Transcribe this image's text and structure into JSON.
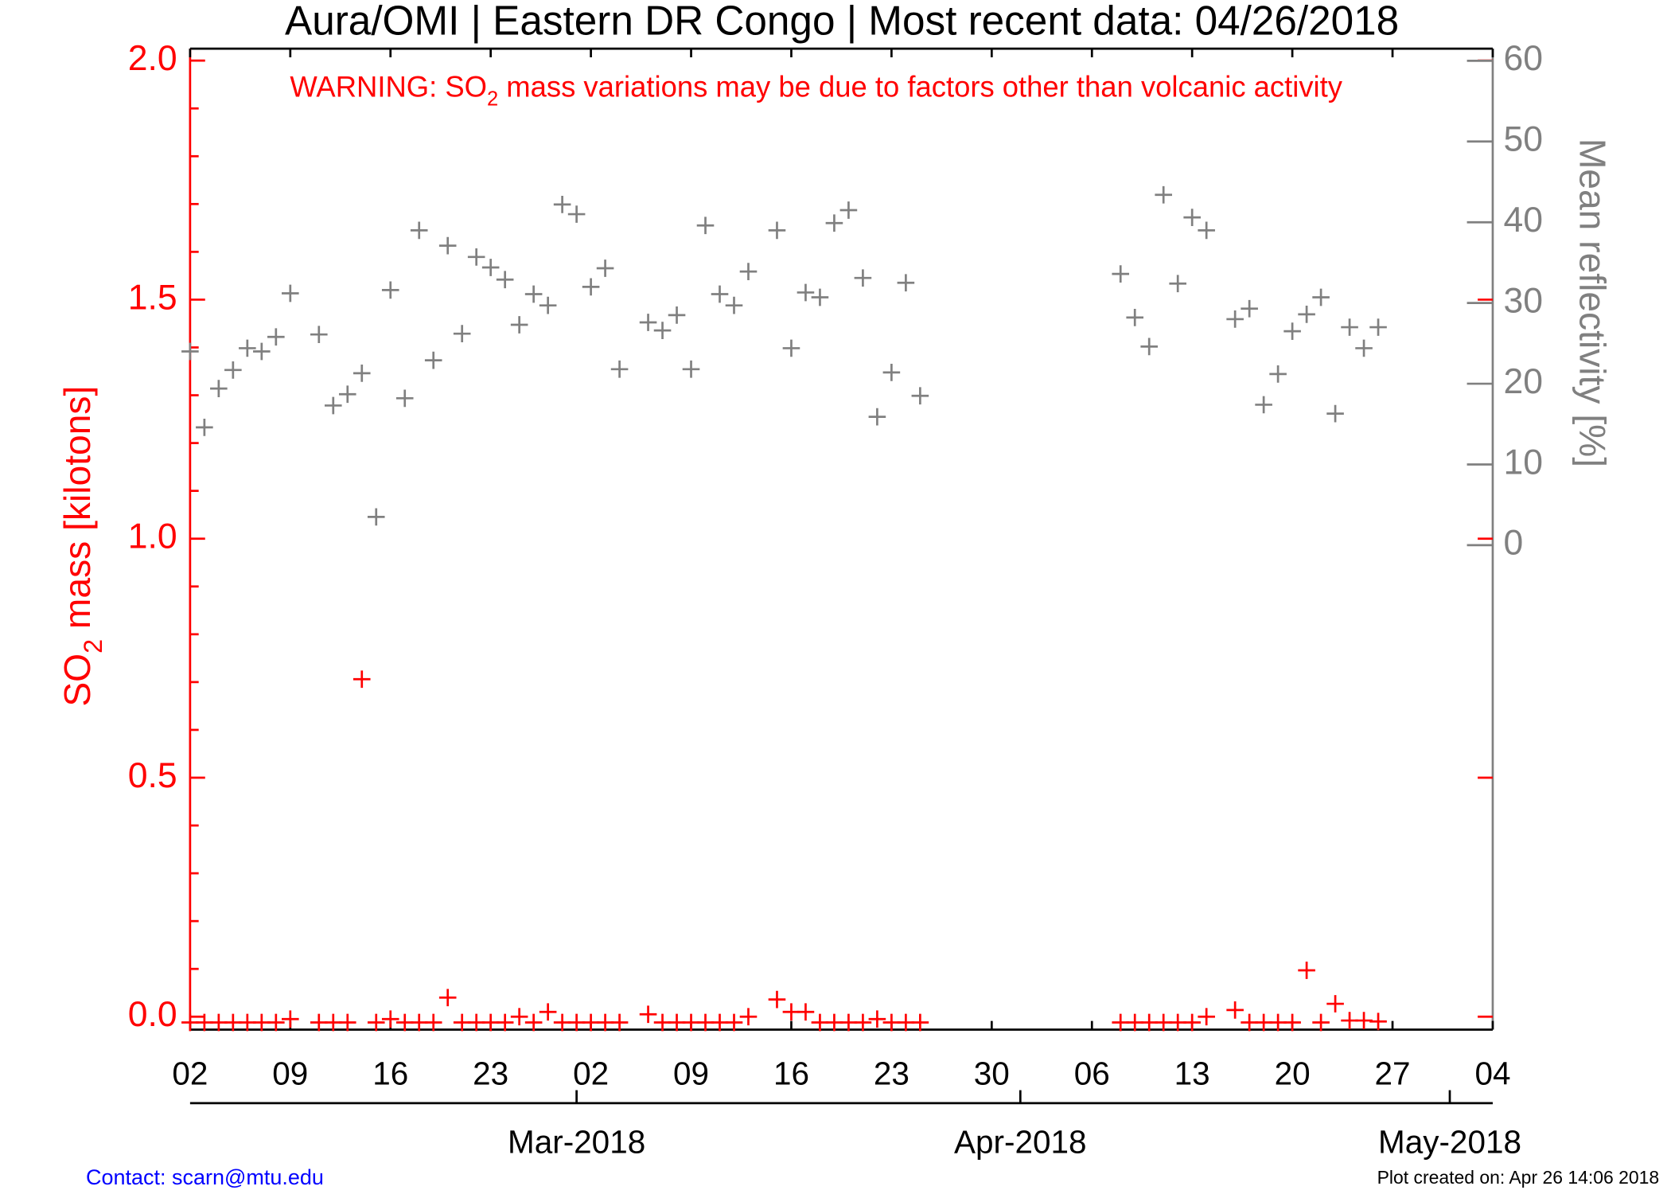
{
  "chart_data": {
    "type": "line",
    "title": "Aura/OMI | Eastern DR Congo | Most recent data: 04/26/2018",
    "annotation": [
      "WARNING: SO",
      "2",
      " mass variations may be due to factors other than volcanic activity"
    ],
    "ylabel": [
      "SO",
      "2",
      " mass [kilotons]"
    ],
    "y2label": "Mean reflectivity [%]",
    "contact": "Contact: scarn@mtu.edu",
    "created": "Plot created on: Apr 26 14:06 2018",
    "xlim": [
      "2018-02-02",
      "2018-05-04"
    ],
    "xticks": [
      {
        "value": "2018-02-02",
        "label": "02"
      },
      {
        "value": "2018-02-09",
        "label": "09"
      },
      {
        "value": "2018-02-16",
        "label": "16"
      },
      {
        "value": "2018-02-23",
        "label": "23"
      },
      {
        "value": "2018-03-02",
        "label": "02"
      },
      {
        "value": "2018-03-09",
        "label": "09"
      },
      {
        "value": "2018-03-16",
        "label": "16"
      },
      {
        "value": "2018-03-23",
        "label": "23"
      },
      {
        "value": "2018-03-30",
        "label": "30"
      },
      {
        "value": "2018-04-06",
        "label": "06"
      },
      {
        "value": "2018-04-13",
        "label": "13"
      },
      {
        "value": "2018-04-20",
        "label": "20"
      },
      {
        "value": "2018-04-27",
        "label": "27"
      },
      {
        "value": "2018-05-04",
        "label": "04"
      }
    ],
    "month_ticks": [
      {
        "value": "2018-03-01",
        "label": "Mar-2018"
      },
      {
        "value": "2018-04-01",
        "label": "Apr-2018"
      },
      {
        "value": "2018-05-01",
        "label": "May-2018"
      }
    ],
    "ylim": [
      -0.027,
      2.025
    ],
    "yticks": [
      {
        "value": 0,
        "label": "0.0"
      },
      0.5,
      {
        "value": 1,
        "label": "1.0"
      },
      1.5,
      {
        "value": 2,
        "label": "2.0"
      }
    ],
    "yminor_ticks": [
      0.1,
      0.2,
      0.3,
      0.4,
      0.6,
      0.7,
      0.8,
      0.9,
      1.1,
      1.2,
      1.3,
      1.4,
      1.6,
      1.7,
      1.8,
      1.9
    ],
    "y2lim": [
      -60,
      61.5
    ],
    "y2ticks": [
      0,
      10,
      20,
      30,
      40,
      50,
      60
    ],
    "x": [
      "2018-02-02",
      "2018-02-03",
      "2018-02-04",
      "2018-02-05",
      "2018-02-06",
      "2018-02-07",
      "2018-02-08",
      "2018-02-09",
      "2018-02-11",
      "2018-02-12",
      "2018-02-13",
      "2018-02-14",
      "2018-02-15",
      "2018-02-16",
      "2018-02-17",
      "2018-02-18",
      "2018-02-19",
      "2018-02-20",
      "2018-02-21",
      "2018-02-22",
      "2018-02-23",
      "2018-02-24",
      "2018-02-25",
      "2018-02-26",
      "2018-02-27",
      "2018-02-28",
      "2018-03-01",
      "2018-03-02",
      "2018-03-03",
      "2018-03-04",
      "2018-03-06",
      "2018-03-07",
      "2018-03-08",
      "2018-03-09",
      "2018-03-10",
      "2018-03-11",
      "2018-03-12",
      "2018-03-13",
      "2018-03-15",
      "2018-03-16",
      "2018-03-17",
      "2018-03-18",
      "2018-03-19",
      "2018-03-20",
      "2018-03-21",
      "2018-03-22",
      "2018-03-23",
      "2018-03-24",
      "2018-03-25",
      "2018-04-08",
      "2018-04-09",
      "2018-04-10",
      "2018-04-11",
      "2018-04-12",
      "2018-04-13",
      "2018-04-14",
      "2018-04-16",
      "2018-04-17",
      "2018-04-18",
      "2018-04-19",
      "2018-04-20",
      "2018-04-21",
      "2018-04-22",
      "2018-04-23",
      "2018-04-24",
      "2018-04-25",
      "2018-04-26"
    ],
    "series": [
      {
        "color": "#ff0000",
        "dash": "14,9",
        "values": [
          -0.012,
          -0.012,
          -0.012,
          -0.012,
          -0.012,
          -0.012,
          -0.012,
          -0.005,
          -0.012,
          -0.012,
          -0.012,
          0.706,
          -0.012,
          -0.005,
          -0.012,
          -0.012,
          -0.012,
          0.04,
          -0.012,
          -0.012,
          -0.012,
          -0.012,
          0.0,
          -0.012,
          0.01,
          -0.012,
          -0.012,
          -0.012,
          -0.012,
          -0.012,
          0.005,
          -0.012,
          -0.012,
          -0.012,
          -0.012,
          -0.012,
          -0.012,
          0.0,
          0.036,
          0.01,
          0.01,
          -0.012,
          -0.012,
          -0.012,
          -0.012,
          -0.005,
          -0.012,
          -0.012,
          -0.012,
          -0.012,
          -0.012,
          -0.012,
          -0.012,
          -0.012,
          -0.012,
          0.0,
          0.014,
          -0.012,
          -0.012,
          -0.012,
          -0.012,
          0.097,
          -0.012,
          0.027,
          -0.008,
          -0.008,
          -0.01
        ]
      },
      {
        "color": "#808080",
        "dash": "2,5",
        "axis": "y2",
        "values": [
          24.0,
          14.6,
          19.4,
          21.7,
          24.4,
          24.0,
          25.8,
          31.2,
          26.1,
          17.3,
          18.7,
          21.3,
          3.5,
          31.6,
          18.2,
          39.0,
          22.9,
          37.1,
          26.2,
          35.7,
          34.4,
          32.9,
          27.3,
          31.1,
          29.7,
          42.2,
          41.0,
          32.0,
          34.3,
          21.8,
          27.6,
          26.6,
          28.5,
          21.8,
          39.6,
          31.1,
          29.7,
          33.9,
          39.0,
          24.4,
          31.3,
          30.7,
          39.9,
          41.5,
          33.1,
          15.9,
          21.4,
          32.5,
          18.5,
          33.6,
          28.2,
          24.6,
          43.4,
          32.4,
          40.6,
          39.0,
          28.0,
          29.3,
          17.4,
          21.2,
          26.5,
          28.6,
          30.7,
          16.3,
          27.0,
          24.4,
          27.0
        ]
      }
    ],
    "colors": {
      "y": "#ff0000",
      "y2": "#808080",
      "contact": "#0000ff"
    }
  }
}
